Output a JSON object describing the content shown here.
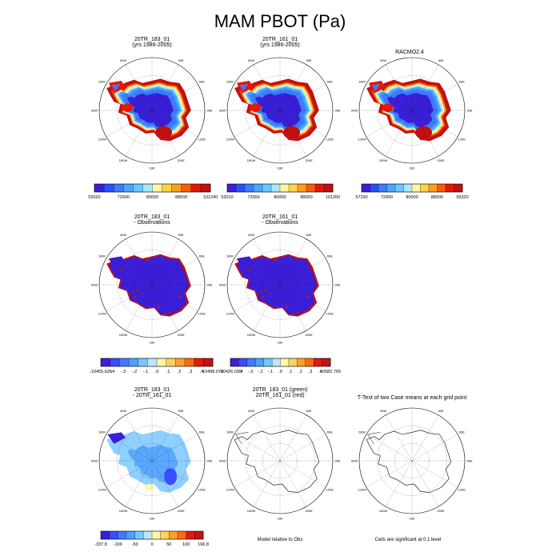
{
  "title": "MAM PBOT (Pa)",
  "panels": [
    {
      "id": "p1",
      "title_line1": "20TR_183_01",
      "title_line2": "(yrs 1986-2005)",
      "style": "abs"
    },
    {
      "id": "p2",
      "title_line1": "20TR_161_01",
      "title_line2": "(yrs 1986-2005)",
      "style": "abs"
    },
    {
      "id": "p3",
      "title_line1": "RACMO2.4",
      "title_line2": "",
      "style": "abs"
    },
    {
      "id": "p4",
      "title_line1": "20TR_183_01",
      "title_line2": "- Observations",
      "style": "bias"
    },
    {
      "id": "p5",
      "title_line1": "20TR_161_01",
      "title_line2": "- Observations",
      "style": "bias"
    },
    {
      "id": "p6",
      "title_line1": "20TR_183_01",
      "title_line2": "- 20TR_161_01",
      "style": "diff"
    },
    {
      "id": "p7",
      "title_line1": "20TR_183_01 (green)",
      "title_line2": "20TR_161_01 (red)",
      "style": "outline"
    },
    {
      "id": "p8",
      "title_line1": "T-Test of two Case means at each grid point",
      "title_line2": "",
      "style": "outline"
    }
  ],
  "grid_labels": [
    "30W",
    "30E",
    "60W",
    "60E",
    "90W",
    "90E",
    "120W",
    "120E",
    "150W",
    "150E",
    "180"
  ],
  "colorbars": [
    {
      "id": "cb1",
      "labels": [
        "53020",
        "72000",
        "80000",
        "88000",
        "101240"
      ]
    },
    {
      "id": "cb2",
      "labels": [
        "53010",
        "72000",
        "80000",
        "88000",
        "101260"
      ]
    },
    {
      "id": "cb3",
      "labels": [
        "57290",
        "72000",
        "80000",
        "88000",
        "99320"
      ]
    },
    {
      "id": "cb4",
      "labels": [
        "-10455.625",
        "-.4",
        "-.3",
        "-.2",
        "-.1",
        ".0",
        ".1",
        ".2",
        ".3",
        ".4",
        "10498.078"
      ]
    },
    {
      "id": "cb5",
      "labels": [
        "-10426.039",
        "-.4",
        "-.3",
        "-.2",
        "-.1",
        ".0",
        ".1",
        ".2",
        ".3",
        ".4",
        "10582.766"
      ]
    },
    {
      "id": "cb6",
      "labels": [
        "-337.8",
        "-100",
        "-50",
        "0",
        "50",
        "100",
        "196.8"
      ]
    }
  ],
  "notes": {
    "model_relative": "Model relative to Obs",
    "significance": "Cells are significant at 0.1 level"
  },
  "palettes": {
    "abs": [
      "#3b1fd8",
      "#2a4fff",
      "#3d7bff",
      "#4aa6ff",
      "#68c8ff",
      "#a9e7ff",
      "#fff7a0",
      "#ffd24a",
      "#ff9f1a",
      "#ff5a0a",
      "#e3170a",
      "#c01010"
    ],
    "diverging": [
      "#3b1fd8",
      "#3a4dff",
      "#3f7bff",
      "#4aa2ff",
      "#76c6ff",
      "#bde6ff",
      "#fff6a6",
      "#ffd35a",
      "#ffa02a",
      "#ff6a10",
      "#e5180c",
      "#c41212"
    ]
  },
  "chart_data": [
    {
      "type": "heatmap",
      "title": "20TR_183_01 (yrs 1986-2005)",
      "colorbar_min": 53020,
      "colorbar_max": 101240,
      "ticks": [
        53020,
        72000,
        80000,
        88000,
        101240
      ]
    },
    {
      "type": "heatmap",
      "title": "20TR_161_01 (yrs 1986-2005)",
      "colorbar_min": 53010,
      "colorbar_max": 101260,
      "ticks": [
        53010,
        72000,
        80000,
        88000,
        101260
      ]
    },
    {
      "type": "heatmap",
      "title": "RACMO2.4",
      "colorbar_min": 57290,
      "colorbar_max": 99320,
      "ticks": [
        57290,
        72000,
        80000,
        88000,
        99320
      ]
    },
    {
      "type": "heatmap",
      "title": "20TR_183_01 - Observations",
      "colorbar_min": -10455.625,
      "colorbar_max": 10498.078,
      "ticks": [
        -0.4,
        -0.3,
        -0.2,
        -0.1,
        0.0,
        0.1,
        0.2,
        0.3,
        0.4
      ]
    },
    {
      "type": "heatmap",
      "title": "20TR_161_01 - Observations",
      "colorbar_min": -10426.039,
      "colorbar_max": 10582.766,
      "ticks": [
        -0.4,
        -0.3,
        -0.2,
        -0.1,
        0.0,
        0.1,
        0.2,
        0.3,
        0.4
      ]
    },
    {
      "type": "heatmap",
      "title": "20TR_183_01 - 20TR_161_01",
      "colorbar_min": -337.8,
      "colorbar_max": 196.8,
      "ticks": [
        -100,
        -50,
        0,
        50,
        100
      ]
    }
  ]
}
